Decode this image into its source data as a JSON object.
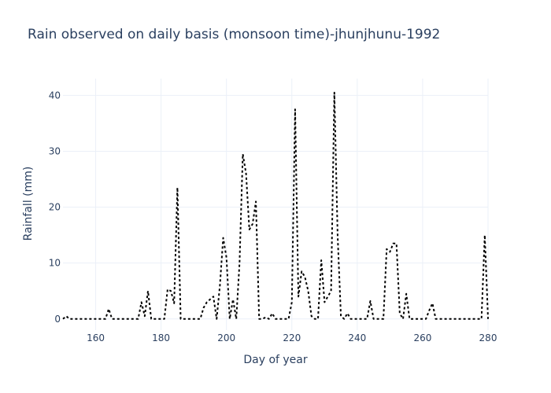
{
  "chart_data": {
    "type": "line",
    "title": "Rain observed on daily basis (monsoon time)-jhunjhunu-1992",
    "xlabel": "Day of year",
    "ylabel": "Rainfall (mm)",
    "xlim": [
      150,
      280
    ],
    "ylim": [
      -2,
      43
    ],
    "xticks": [
      160,
      180,
      200,
      220,
      240,
      260,
      280
    ],
    "yticks": [
      0,
      10,
      20,
      30,
      40
    ],
    "grid": true,
    "line_style": "dotted",
    "line_color": "#000000",
    "series": [
      {
        "x": [
          150,
          151,
          152,
          153,
          154,
          155,
          156,
          157,
          158,
          159,
          160,
          161,
          162,
          163,
          164,
          165,
          166,
          167,
          168,
          169,
          170,
          171,
          172,
          173,
          174,
          175,
          176,
          177,
          178,
          179,
          180,
          181,
          182,
          183,
          184,
          185,
          186,
          187,
          188,
          189,
          190,
          191,
          192,
          193,
          194,
          195,
          196,
          197,
          198,
          199,
          200,
          201,
          202,
          203,
          204,
          205,
          206,
          207,
          208,
          209,
          210,
          211,
          212,
          213,
          214,
          215,
          216,
          217,
          218,
          219,
          220,
          221,
          222,
          223,
          224,
          225,
          226,
          227,
          228,
          229,
          230,
          231,
          232,
          233,
          234,
          235,
          236,
          237,
          238,
          239,
          240,
          241,
          242,
          243,
          244,
          245,
          246,
          247,
          248,
          249,
          250,
          251,
          252,
          253,
          254,
          255,
          256,
          257,
          258,
          259,
          260,
          261,
          262,
          263,
          264,
          265,
          266,
          267,
          268,
          269,
          270,
          271,
          272,
          273,
          274,
          275,
          276,
          277,
          278,
          279,
          280
        ],
        "values": [
          0,
          0.5,
          0,
          0,
          0,
          0,
          0,
          0,
          0,
          0,
          0,
          0,
          0,
          0,
          1.8,
          0,
          0,
          0,
          0,
          0,
          0,
          0,
          0,
          0,
          3,
          0.5,
          5,
          0,
          0,
          0,
          0,
          0,
          5.3,
          5,
          2.8,
          23.5,
          0,
          0,
          0,
          0,
          0,
          0,
          0,
          2,
          3,
          3.5,
          4,
          0,
          6,
          14.5,
          11,
          0,
          3.5,
          0,
          10,
          29.5,
          26,
          16,
          17,
          21,
          0,
          0,
          0.3,
          0,
          1,
          0,
          0,
          0,
          0,
          0,
          3,
          37.5,
          4,
          8.5,
          7.5,
          5,
          0.5,
          0,
          0,
          10.5,
          3,
          4,
          5,
          40.5,
          15,
          0.5,
          0,
          1,
          0,
          0,
          0,
          0,
          0,
          0,
          3.2,
          0,
          0,
          0,
          0,
          12.5,
          12,
          13.5,
          13.5,
          1,
          0,
          4.5,
          0,
          0,
          0,
          0,
          0,
          0,
          1.5,
          2.8,
          0,
          0,
          0,
          0,
          0,
          0,
          0,
          0,
          0,
          0,
          0,
          0,
          0,
          0,
          0,
          15,
          0
        ]
      }
    ]
  }
}
